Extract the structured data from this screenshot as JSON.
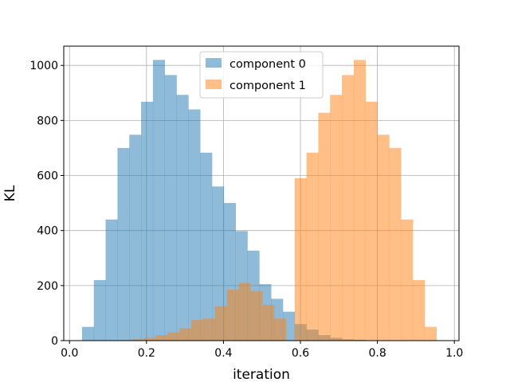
{
  "chart_data": {
    "type": "histogram",
    "xlabel": "iteration",
    "ylabel": "KL",
    "xlim": [
      -0.015,
      1.012
    ],
    "ylim": [
      0,
      1070
    ],
    "grid": true,
    "legend_position": "top-center",
    "x_ticks": [
      0.0,
      0.2,
      0.4,
      0.6,
      0.8,
      1.0
    ],
    "x_tick_labels": [
      "0.0",
      "0.2",
      "0.4",
      "0.6",
      "0.8",
      "1.0"
    ],
    "y_ticks": [
      0,
      200,
      400,
      600,
      800,
      1000
    ],
    "y_tick_labels": [
      "0",
      "200",
      "400",
      "600",
      "800",
      "1000"
    ],
    "bin_width": 0.0307,
    "series": [
      {
        "name": "component 0",
        "color": "#1f77b4",
        "alpha": 0.5,
        "bin_start": 0.0325,
        "values": [
          50,
          220,
          440,
          700,
          748,
          868,
          1020,
          965,
          893,
          840,
          683,
          560,
          500,
          398,
          327,
          205,
          152,
          105,
          60,
          40,
          20,
          10,
          5,
          3
        ]
      },
      {
        "name": "component 1",
        "color": "#ff7f0e",
        "alpha": 0.5,
        "bin_start": 0.1325,
        "values": [
          2,
          5,
          10,
          20,
          30,
          45,
          75,
          80,
          125,
          185,
          210,
          180,
          130,
          80,
          590,
          683,
          828,
          893,
          965,
          1020,
          868,
          748,
          700,
          440,
          220,
          50
        ],
        "bin_start_override": [
          0.1325,
          0.1632,
          0.1939,
          0.2246,
          0.2553,
          0.286,
          0.3167,
          0.3474,
          0.3781,
          0.4088,
          0.4395,
          0.4702,
          0.5009,
          0.5316,
          0.585,
          0.6157,
          0.6464,
          0.6771,
          0.7078,
          0.7385,
          0.7692,
          0.7999,
          0.8306,
          0.8613,
          0.892,
          0.9227
        ]
      }
    ]
  }
}
